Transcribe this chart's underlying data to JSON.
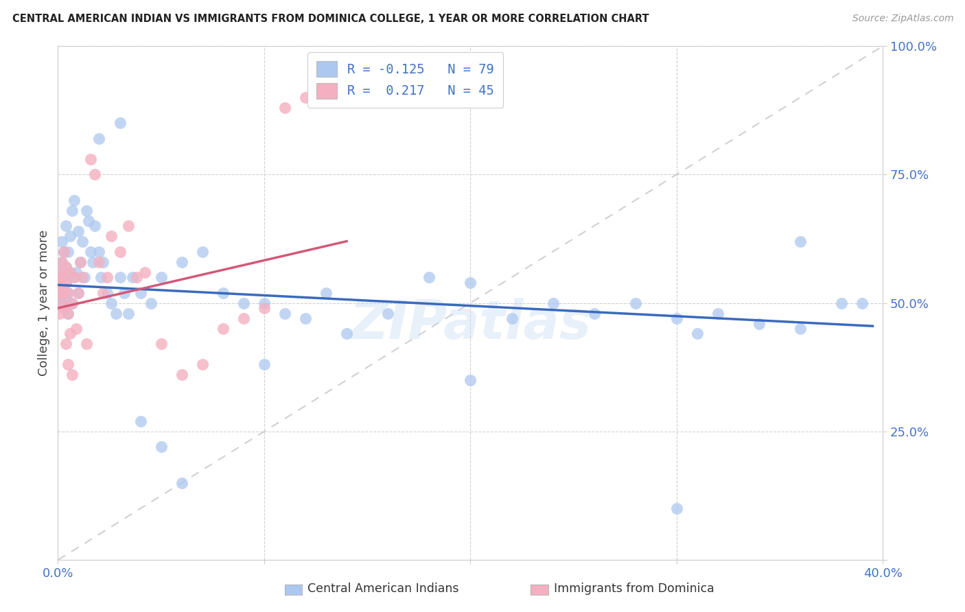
{
  "title": "CENTRAL AMERICAN INDIAN VS IMMIGRANTS FROM DOMINICA COLLEGE, 1 YEAR OR MORE CORRELATION CHART",
  "source": "Source: ZipAtlas.com",
  "ylabel": "College, 1 year or more",
  "xlim": [
    0.0,
    0.4
  ],
  "ylim": [
    0.0,
    1.0
  ],
  "legend_label1": "Central American Indians",
  "legend_label2": "Immigrants from Dominica",
  "R1": -0.125,
  "N1": 79,
  "R2": 0.217,
  "N2": 45,
  "color1": "#adc8f0",
  "color2": "#f4b0c0",
  "line1_color": "#3a6abf",
  "line2_color": "#d45878",
  "diag_color": "#c8c8c8",
  "bg_color": "#ffffff",
  "watermark": "ZIPatlas",
  "blue_x": [
    0.001,
    0.001,
    0.001,
    0.002,
    0.002,
    0.002,
    0.002,
    0.002,
    0.003,
    0.003,
    0.003,
    0.004,
    0.004,
    0.004,
    0.005,
    0.005,
    0.005,
    0.006,
    0.006,
    0.007,
    0.007,
    0.008,
    0.008,
    0.009,
    0.01,
    0.01,
    0.011,
    0.012,
    0.013,
    0.014,
    0.015,
    0.016,
    0.017,
    0.018,
    0.02,
    0.021,
    0.022,
    0.024,
    0.026,
    0.028,
    0.03,
    0.032,
    0.034,
    0.036,
    0.04,
    0.045,
    0.05,
    0.06,
    0.07,
    0.08,
    0.09,
    0.1,
    0.11,
    0.12,
    0.13,
    0.14,
    0.16,
    0.18,
    0.2,
    0.22,
    0.24,
    0.26,
    0.28,
    0.3,
    0.31,
    0.32,
    0.34,
    0.36,
    0.38,
    0.39,
    0.02,
    0.03,
    0.04,
    0.05,
    0.06,
    0.1,
    0.2,
    0.3,
    0.36
  ],
  "blue_y": [
    0.52,
    0.54,
    0.56,
    0.5,
    0.53,
    0.55,
    0.58,
    0.62,
    0.49,
    0.51,
    0.6,
    0.54,
    0.57,
    0.65,
    0.48,
    0.52,
    0.6,
    0.56,
    0.63,
    0.5,
    0.68,
    0.55,
    0.7,
    0.56,
    0.52,
    0.64,
    0.58,
    0.62,
    0.55,
    0.68,
    0.66,
    0.6,
    0.58,
    0.65,
    0.6,
    0.55,
    0.58,
    0.52,
    0.5,
    0.48,
    0.55,
    0.52,
    0.48,
    0.55,
    0.52,
    0.5,
    0.55,
    0.58,
    0.6,
    0.52,
    0.5,
    0.5,
    0.48,
    0.47,
    0.52,
    0.44,
    0.48,
    0.55,
    0.54,
    0.47,
    0.5,
    0.48,
    0.5,
    0.47,
    0.44,
    0.48,
    0.46,
    0.45,
    0.5,
    0.5,
    0.82,
    0.85,
    0.27,
    0.22,
    0.15,
    0.38,
    0.35,
    0.1,
    0.62
  ],
  "pink_x": [
    0.001,
    0.001,
    0.001,
    0.001,
    0.002,
    0.002,
    0.002,
    0.002,
    0.003,
    0.003,
    0.003,
    0.004,
    0.004,
    0.004,
    0.005,
    0.005,
    0.005,
    0.006,
    0.006,
    0.007,
    0.007,
    0.008,
    0.009,
    0.01,
    0.011,
    0.012,
    0.014,
    0.016,
    0.018,
    0.02,
    0.022,
    0.024,
    0.026,
    0.03,
    0.034,
    0.038,
    0.042,
    0.05,
    0.06,
    0.07,
    0.08,
    0.09,
    0.1,
    0.11,
    0.12
  ],
  "pink_y": [
    0.52,
    0.54,
    0.56,
    0.48,
    0.5,
    0.53,
    0.55,
    0.58,
    0.49,
    0.52,
    0.6,
    0.54,
    0.57,
    0.42,
    0.48,
    0.52,
    0.38,
    0.56,
    0.44,
    0.5,
    0.36,
    0.55,
    0.45,
    0.52,
    0.58,
    0.55,
    0.42,
    0.78,
    0.75,
    0.58,
    0.52,
    0.55,
    0.63,
    0.6,
    0.65,
    0.55,
    0.56,
    0.42,
    0.36,
    0.38,
    0.45,
    0.47,
    0.49,
    0.88,
    0.9
  ],
  "line1_x0": 0.0,
  "line1_x1": 0.395,
  "line1_y0": 0.535,
  "line1_y1": 0.455,
  "line2_x0": 0.0,
  "line2_x1": 0.14,
  "line2_y0": 0.49,
  "line2_y1": 0.62
}
